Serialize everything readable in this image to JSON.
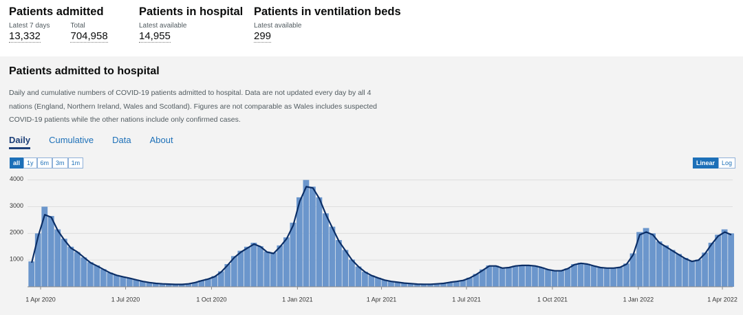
{
  "header": {
    "cards": [
      {
        "title": "Patients admitted",
        "items": [
          {
            "label": "Latest 7 days",
            "value": "13,332"
          },
          {
            "label": "Total",
            "value": "704,958"
          }
        ]
      },
      {
        "title": "Patients in hospital",
        "items": [
          {
            "label": "Latest available",
            "value": "14,955"
          }
        ]
      },
      {
        "title": "Patients in ventilation beds",
        "items": [
          {
            "label": "Latest available",
            "value": "299"
          }
        ]
      }
    ]
  },
  "section": {
    "title": "Patients admitted to hospital",
    "description": "Daily and cumulative numbers of COVID-19 patients admitted to hospital. Data are not updated every day by all 4 nations (England, Northern Ireland, Wales and Scotland). Figures are not comparable as Wales includes suspected COVID-19 patients while the other nations include only confirmed cases.",
    "tabs": [
      "Daily",
      "Cumulative",
      "Data",
      "About"
    ],
    "active_tab": 0,
    "ranges": [
      "all",
      "1y",
      "6m",
      "3m",
      "1m"
    ],
    "active_range": 0,
    "scales": [
      "Linear",
      "Log"
    ],
    "active_scale": 0
  },
  "chart_data": {
    "type": "bar",
    "x": [
      "2020-03-19",
      "2020-03-26",
      "2020-04-02",
      "2020-04-09",
      "2020-04-16",
      "2020-04-23",
      "2020-04-30",
      "2020-05-07",
      "2020-05-14",
      "2020-05-21",
      "2020-05-28",
      "2020-06-04",
      "2020-06-11",
      "2020-06-18",
      "2020-06-25",
      "2020-07-02",
      "2020-07-09",
      "2020-07-16",
      "2020-07-23",
      "2020-07-30",
      "2020-08-06",
      "2020-08-13",
      "2020-08-20",
      "2020-08-27",
      "2020-09-03",
      "2020-09-10",
      "2020-09-17",
      "2020-09-24",
      "2020-10-01",
      "2020-10-08",
      "2020-10-15",
      "2020-10-22",
      "2020-10-29",
      "2020-11-05",
      "2020-11-12",
      "2020-11-19",
      "2020-11-26",
      "2020-12-03",
      "2020-12-10",
      "2020-12-17",
      "2020-12-24",
      "2020-12-31",
      "2021-01-07",
      "2021-01-14",
      "2021-01-21",
      "2021-01-28",
      "2021-02-04",
      "2021-02-11",
      "2021-02-18",
      "2021-02-25",
      "2021-03-04",
      "2021-03-11",
      "2021-03-18",
      "2021-03-25",
      "2021-04-01",
      "2021-04-08",
      "2021-04-15",
      "2021-04-22",
      "2021-04-29",
      "2021-05-06",
      "2021-05-13",
      "2021-05-20",
      "2021-05-27",
      "2021-06-03",
      "2021-06-10",
      "2021-06-17",
      "2021-06-24",
      "2021-07-01",
      "2021-07-08",
      "2021-07-15",
      "2021-07-22",
      "2021-07-29",
      "2021-08-05",
      "2021-08-12",
      "2021-08-19",
      "2021-08-26",
      "2021-09-02",
      "2021-09-09",
      "2021-09-16",
      "2021-09-23",
      "2021-09-30",
      "2021-10-07",
      "2021-10-14",
      "2021-10-21",
      "2021-10-28",
      "2021-11-04",
      "2021-11-11",
      "2021-11-18",
      "2021-11-25",
      "2021-12-02",
      "2021-12-09",
      "2021-12-16",
      "2021-12-23",
      "2021-12-30",
      "2022-01-06",
      "2022-01-13",
      "2022-01-20",
      "2022-01-27",
      "2022-02-03",
      "2022-02-10",
      "2022-02-17",
      "2022-02-24",
      "2022-03-03",
      "2022-03-10",
      "2022-03-17",
      "2022-03-24",
      "2022-03-31",
      "2022-04-07"
    ],
    "series": [
      {
        "type": "bar",
        "color": "#6b96cc",
        "values": [
          950,
          2000,
          3000,
          2650,
          2150,
          1800,
          1500,
          1300,
          1100,
          920,
          800,
          660,
          530,
          440,
          380,
          320,
          270,
          210,
          170,
          140,
          115,
          105,
          95,
          95,
          115,
          165,
          240,
          300,
          400,
          580,
          850,
          1150,
          1350,
          1500,
          1650,
          1520,
          1320,
          1280,
          1550,
          1850,
          2400,
          3350,
          4000,
          3750,
          3350,
          2750,
          2250,
          1750,
          1380,
          1020,
          760,
          560,
          430,
          340,
          260,
          205,
          175,
          145,
          125,
          105,
          98,
          98,
          115,
          135,
          175,
          205,
          250,
          340,
          480,
          650,
          800,
          790,
          710,
          730,
          790,
          810,
          810,
          790,
          730,
          650,
          610,
          610,
          690,
          850,
          900,
          860,
          790,
          730,
          710,
          710,
          740,
          870,
          1250,
          2050,
          2200,
          2000,
          1700,
          1550,
          1380,
          1230,
          1080,
          980,
          1020,
          1280,
          1650,
          1950,
          2150,
          2000
        ]
      },
      {
        "type": "line",
        "color": "#0b2e66",
        "values": [
          900,
          1900,
          2700,
          2600,
          2100,
          1750,
          1450,
          1300,
          1100,
          900,
          780,
          650,
          520,
          430,
          370,
          320,
          260,
          200,
          160,
          130,
          110,
          100,
          90,
          90,
          110,
          160,
          230,
          290,
          380,
          560,
          820,
          1100,
          1300,
          1450,
          1600,
          1500,
          1300,
          1250,
          1500,
          1800,
          2300,
          3200,
          3750,
          3700,
          3300,
          2700,
          2200,
          1700,
          1350,
          1000,
          750,
          550,
          420,
          330,
          250,
          200,
          170,
          140,
          120,
          100,
          95,
          95,
          110,
          130,
          170,
          200,
          240,
          330,
          460,
          620,
          780,
          780,
          700,
          720,
          780,
          800,
          800,
          780,
          720,
          640,
          600,
          600,
          680,
          830,
          880,
          850,
          780,
          720,
          700,
          700,
          730,
          850,
          1200,
          1950,
          2050,
          1950,
          1650,
          1500,
          1350,
          1200,
          1050,
          950,
          1000,
          1250,
          1600,
          1900,
          2050,
          1950
        ]
      }
    ],
    "xlim": [
      "2020-03-18",
      "2022-04-12"
    ],
    "xticks": [
      {
        "value": "2020-04-01",
        "label": "1 Apr 2020"
      },
      {
        "value": "2020-07-01",
        "label": "1 Jul 2020"
      },
      {
        "value": "2020-10-01",
        "label": "1 Oct 2020"
      },
      {
        "value": "2021-01-01",
        "label": "1 Jan 2021"
      },
      {
        "value": "2021-04-01",
        "label": "1 Apr 2021"
      },
      {
        "value": "2021-07-01",
        "label": "1 Jul 2021"
      },
      {
        "value": "2021-10-01",
        "label": "1 Oct 2021"
      },
      {
        "value": "2022-01-01",
        "label": "1 Jan 2022"
      },
      {
        "value": "2022-04-01",
        "label": "1 Apr 2022"
      }
    ],
    "ylim": [
      0,
      4300
    ],
    "yticks": [
      1000,
      2000,
      3000,
      4000
    ],
    "grid": true
  }
}
